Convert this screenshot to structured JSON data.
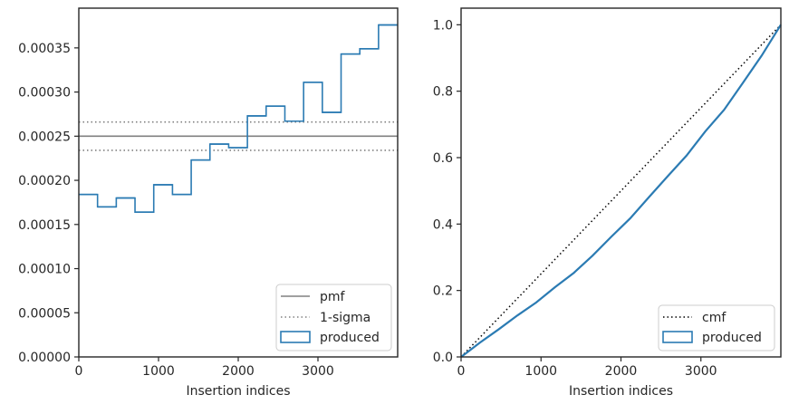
{
  "chart_data": [
    {
      "type": "step",
      "xlabel": "Insertion indices",
      "ylabel": "",
      "title": "",
      "xlim": [
        0,
        4000
      ],
      "ylim": [
        0,
        0.000395
      ],
      "xticks": [
        0,
        1000,
        2000,
        3000
      ],
      "xtick_labels": [
        "0",
        "1000",
        "2000",
        "3000"
      ],
      "yticks": [
        0,
        5e-05,
        0.0001,
        0.00015,
        0.0002,
        0.00025,
        0.0003,
        0.00035
      ],
      "ytick_labels": [
        "0.00000",
        "0.00005",
        "0.00010",
        "0.00015",
        "0.00020",
        "0.00025",
        "0.00030",
        "0.00035"
      ],
      "grid": false,
      "legend_position": "lower-right",
      "legend": [
        "pmf",
        "1-sigma",
        "produced"
      ],
      "pmf": {
        "name": "pmf",
        "y": 0.00025,
        "color": "#808080"
      },
      "sigma": {
        "name": "1-sigma",
        "values": [
          0.000234,
          0.000266
        ],
        "color": "#808080"
      },
      "series": [
        {
          "name": "produced",
          "color": "#2b7bb3",
          "bin_edges": [
            0,
            235,
            470,
            705,
            940,
            1175,
            1410,
            1645,
            1880,
            2115,
            2350,
            2585,
            2820,
            3055,
            3290,
            3525,
            3760,
            4000
          ],
          "values": [
            0.000184,
            0.00017,
            0.00018,
            0.000164,
            0.000195,
            0.000184,
            0.000223,
            0.000241,
            0.000237,
            0.000273,
            0.000284,
            0.000267,
            0.000311,
            0.000277,
            0.000343,
            0.000349,
            0.000376
          ]
        }
      ]
    },
    {
      "type": "line",
      "xlabel": "Insertion indices",
      "ylabel": "",
      "title": "",
      "xlim": [
        0,
        4000
      ],
      "ylim": [
        0,
        1.05
      ],
      "xticks": [
        0,
        1000,
        2000,
        3000
      ],
      "xtick_labels": [
        "0",
        "1000",
        "2000",
        "3000"
      ],
      "yticks": [
        0,
        0.2,
        0.4,
        0.6,
        0.8,
        1.0
      ],
      "ytick_labels": [
        "0.0",
        "0.2",
        "0.4",
        "0.6",
        "0.8",
        "1.0"
      ],
      "grid": false,
      "legend_position": "lower-right",
      "legend": [
        "cmf",
        "produced"
      ],
      "series": [
        {
          "name": "cmf",
          "style": "dotted",
          "color": "#000000",
          "x": [
            0,
            4000
          ],
          "y": [
            0,
            1.0
          ]
        },
        {
          "name": "produced",
          "style": "solid",
          "color": "#2b7bb3",
          "x": [
            0,
            100,
            235,
            470,
            705,
            940,
            1175,
            1410,
            1645,
            1880,
            2115,
            2350,
            2585,
            2820,
            3055,
            3290,
            3525,
            3760,
            4000
          ],
          "y": [
            0,
            0.018,
            0.043,
            0.083,
            0.125,
            0.164,
            0.21,
            0.253,
            0.305,
            0.362,
            0.417,
            0.481,
            0.544,
            0.606,
            0.679,
            0.744,
            0.825,
            0.907,
            1.0
          ]
        }
      ]
    }
  ]
}
